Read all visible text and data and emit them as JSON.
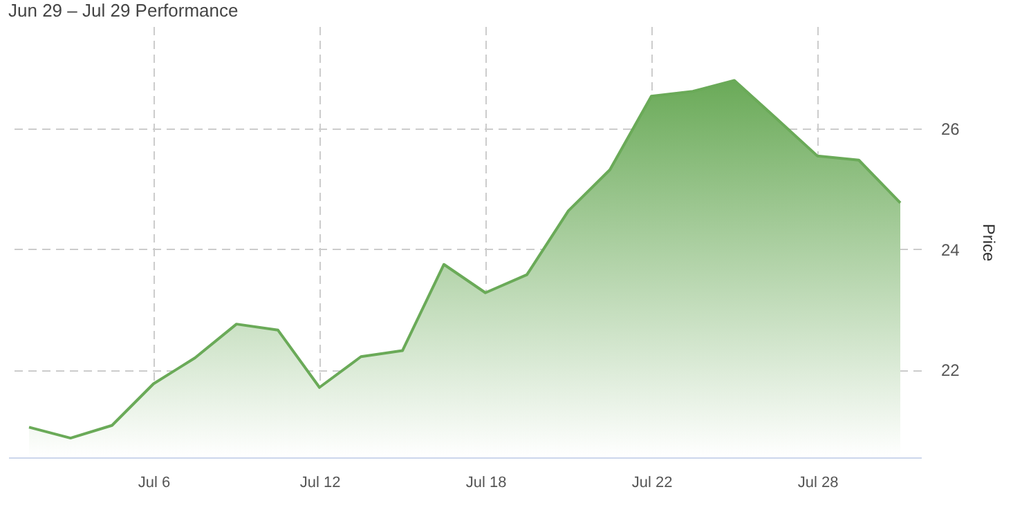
{
  "chart_data": {
    "type": "area",
    "title": "Jun 29 – Jul 29 Performance",
    "ylabel": "Price",
    "categories": [
      null,
      null,
      null,
      "Jul 6",
      null,
      null,
      null,
      "Jul 12",
      null,
      null,
      null,
      "Jul 18",
      null,
      null,
      null,
      "Jul 22",
      null,
      null,
      null,
      "Jul 28",
      null,
      null
    ],
    "series": [
      {
        "color": "#6aaa58",
        "values": [
          21.05,
          20.87,
          21.08,
          21.77,
          22.2,
          22.76,
          22.66,
          21.71,
          22.22,
          22.32,
          23.75,
          23.28,
          23.58,
          24.64,
          25.32,
          26.54,
          26.62,
          26.8,
          26.18,
          25.55,
          25.48,
          24.77
        ]
      }
    ],
    "ylim": [
      20.55,
      27.7
    ],
    "yticks": [
      22,
      24,
      26
    ],
    "grid": true
  }
}
